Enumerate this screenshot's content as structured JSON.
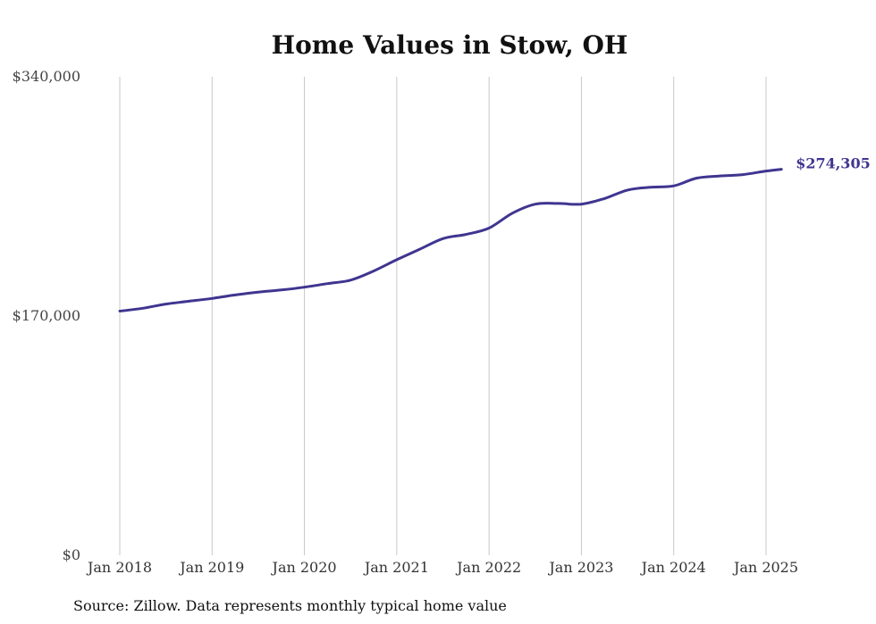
{
  "chart_data": {
    "type": "line",
    "title": "Home Values in Stow, OH",
    "xlabel": "",
    "ylabel": "",
    "ylim": [
      0,
      340000
    ],
    "yticks": [
      {
        "value": 0,
        "label": "$0"
      },
      {
        "value": 170000,
        "label": "$170,000"
      },
      {
        "value": 340000,
        "label": "$340,000"
      }
    ],
    "xticks": [
      {
        "value": "2018-01",
        "label": "Jan 2018"
      },
      {
        "value": "2019-01",
        "label": "Jan 2019"
      },
      {
        "value": "2020-01",
        "label": "Jan 2020"
      },
      {
        "value": "2021-01",
        "label": "Jan 2021"
      },
      {
        "value": "2022-01",
        "label": "Jan 2022"
      },
      {
        "value": "2023-01",
        "label": "Jan 2023"
      },
      {
        "value": "2024-01",
        "label": "Jan 2024"
      },
      {
        "value": "2025-01",
        "label": "Jan 2025"
      }
    ],
    "grid": "vertical",
    "series": [
      {
        "color": "#3f3590",
        "end_label": "$274,305",
        "points": [
          {
            "x": "2018-01",
            "y": 173500
          },
          {
            "x": "2018-04",
            "y": 175500
          },
          {
            "x": "2018-07",
            "y": 178500
          },
          {
            "x": "2018-10",
            "y": 180500
          },
          {
            "x": "2019-01",
            "y": 182500
          },
          {
            "x": "2019-04",
            "y": 185000
          },
          {
            "x": "2019-07",
            "y": 187000
          },
          {
            "x": "2019-10",
            "y": 188500
          },
          {
            "x": "2020-01",
            "y": 190500
          },
          {
            "x": "2020-04",
            "y": 193000
          },
          {
            "x": "2020-07",
            "y": 195500
          },
          {
            "x": "2020-10",
            "y": 202000
          },
          {
            "x": "2021-01",
            "y": 210000
          },
          {
            "x": "2021-04",
            "y": 217500
          },
          {
            "x": "2021-07",
            "y": 225000
          },
          {
            "x": "2021-10",
            "y": 228000
          },
          {
            "x": "2022-01",
            "y": 232500
          },
          {
            "x": "2022-04",
            "y": 243000
          },
          {
            "x": "2022-07",
            "y": 249500
          },
          {
            "x": "2022-10",
            "y": 250000
          },
          {
            "x": "2023-01",
            "y": 249500
          },
          {
            "x": "2023-04",
            "y": 253500
          },
          {
            "x": "2023-07",
            "y": 259500
          },
          {
            "x": "2023-10",
            "y": 261500
          },
          {
            "x": "2024-01",
            "y": 262500
          },
          {
            "x": "2024-04",
            "y": 268000
          },
          {
            "x": "2024-07",
            "y": 269500
          },
          {
            "x": "2024-10",
            "y": 270500
          },
          {
            "x": "2025-01",
            "y": 273000
          },
          {
            "x": "2025-03",
            "y": 274305
          }
        ]
      }
    ],
    "source": "Source: Zillow. Data represents monthly typical home value"
  }
}
